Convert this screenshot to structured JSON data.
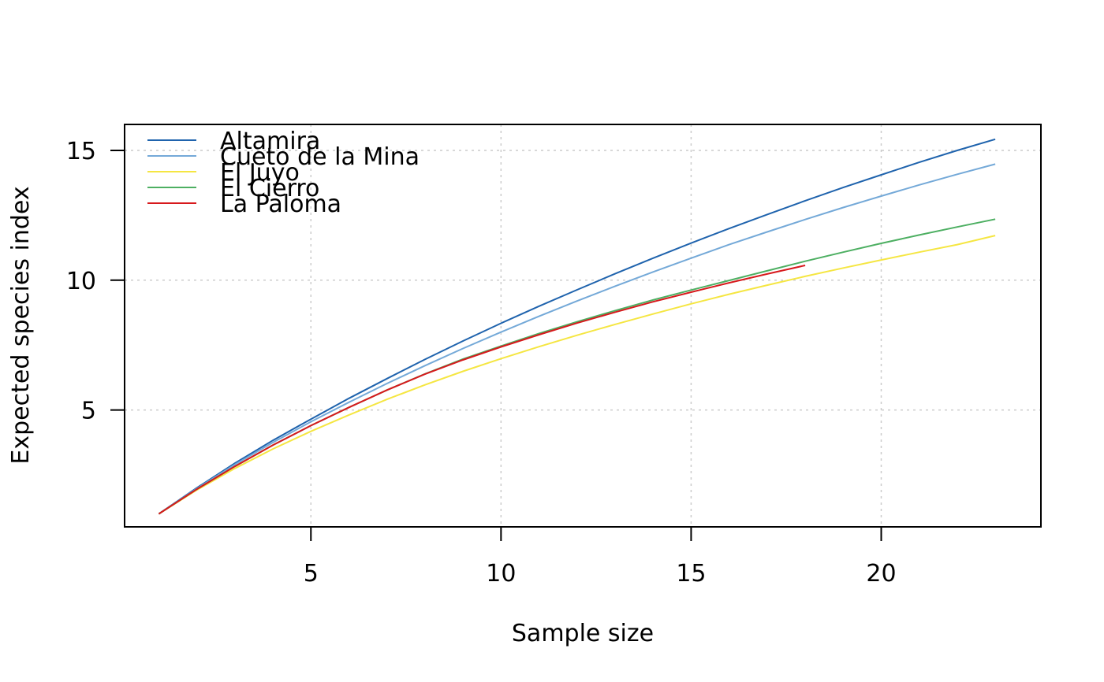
{
  "chart_data": {
    "type": "line",
    "xlabel": "Sample size",
    "ylabel": "Expected species index",
    "xlim": [
      0.1,
      24.2
    ],
    "ylim": [
      0.5,
      16
    ],
    "xticks": [
      5,
      10,
      15,
      20
    ],
    "yticks": [
      5,
      10,
      15
    ],
    "grid": true,
    "legend_position": "top-left",
    "series": [
      {
        "name": "Altamira",
        "color": "#1f63ad",
        "x": [
          1,
          2,
          3,
          4,
          5,
          6,
          7,
          8,
          9,
          10,
          11,
          12,
          13,
          14,
          15,
          16,
          17,
          18,
          19,
          20,
          21,
          22,
          23
        ],
        "y": [
          1.0,
          2.0,
          2.95,
          3.83,
          4.65,
          5.45,
          6.21,
          6.95,
          7.66,
          8.34,
          9.0,
          9.63,
          10.25,
          10.85,
          11.43,
          11.99,
          12.53,
          13.06,
          13.57,
          14.06,
          14.54,
          15.0,
          15.43
        ]
      },
      {
        "name": "Cueto de la Mina",
        "color": "#74a9d8",
        "x": [
          1,
          2,
          3,
          4,
          5,
          6,
          7,
          8,
          9,
          10,
          11,
          12,
          13,
          14,
          15,
          16,
          17,
          18,
          19,
          20,
          21,
          22,
          23
        ],
        "y": [
          1.0,
          1.97,
          2.9,
          3.75,
          4.55,
          5.3,
          6.02,
          6.71,
          7.37,
          8.0,
          8.61,
          9.2,
          9.77,
          10.32,
          10.85,
          11.37,
          11.86,
          12.34,
          12.8,
          13.24,
          13.67,
          14.08,
          14.47
        ]
      },
      {
        "name": "El Juyo",
        "color": "#f5e642",
        "x": [
          1,
          2,
          3,
          4,
          5,
          6,
          7,
          8,
          9,
          10,
          11,
          12,
          13,
          14,
          15,
          16,
          17,
          18,
          19,
          20,
          21,
          22,
          23
        ],
        "y": [
          1.0,
          1.92,
          2.75,
          3.5,
          4.18,
          4.81,
          5.41,
          5.97,
          6.49,
          6.98,
          7.44,
          7.88,
          8.3,
          8.7,
          9.09,
          9.46,
          9.81,
          10.15,
          10.47,
          10.78,
          11.08,
          11.37,
          11.72
        ]
      },
      {
        "name": "El Cierro",
        "color": "#4daf62",
        "x": [
          1,
          2,
          3,
          4,
          5,
          6,
          7,
          8,
          9,
          10,
          11,
          12,
          13,
          14,
          15,
          16,
          17,
          18,
          19,
          20,
          21,
          22,
          23
        ],
        "y": [
          1.0,
          1.95,
          2.83,
          3.65,
          4.4,
          5.1,
          5.77,
          6.39,
          6.96,
          7.46,
          7.95,
          8.4,
          8.83,
          9.24,
          9.62,
          9.99,
          10.36,
          10.73,
          11.08,
          11.42,
          11.74,
          12.05,
          12.35
        ]
      },
      {
        "name": "La Paloma",
        "color": "#d7191c",
        "x": [
          1,
          2,
          3,
          4,
          5,
          6,
          7,
          8,
          9,
          10,
          11,
          12,
          13,
          14,
          15,
          16,
          17,
          18
        ],
        "y": [
          1.0,
          1.95,
          2.83,
          3.65,
          4.4,
          5.1,
          5.77,
          6.38,
          6.93,
          7.43,
          7.9,
          8.35,
          8.77,
          9.17,
          9.54,
          9.9,
          10.24,
          10.57
        ]
      }
    ]
  }
}
